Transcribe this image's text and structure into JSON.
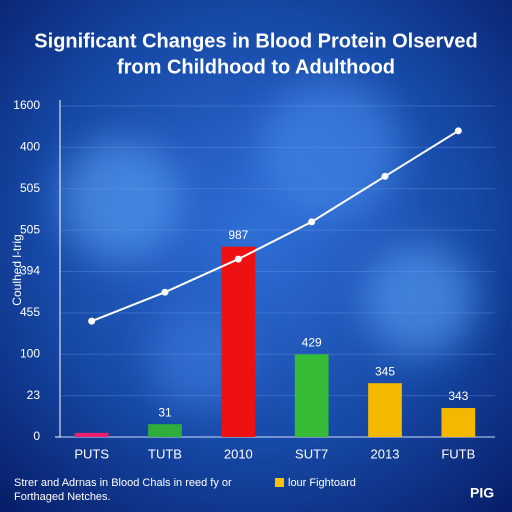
{
  "chart_data": {
    "type": "bar",
    "title": [
      "Significant Changes in Blood Protein Olserved",
      "from Childhood to Adulthood"
    ],
    "y_label": "Coulhed l-trig",
    "categories": [
      "PUTS",
      "TUTB",
      "2010",
      "SUT7",
      "2013",
      "FUTB"
    ],
    "values": [
      0.1,
      0.31,
      4.6,
      2.0,
      1.3,
      0.7
    ],
    "colors": [
      "#e8206e",
      "#2fae3c",
      "#ee1111",
      "#35bb35",
      "#f5b800",
      "#f5b800"
    ],
    "annotations": [
      null,
      "31",
      "987",
      "429",
      "345",
      "343"
    ],
    "line": {
      "color": "#ffffff",
      "values": [
        2.8,
        3.5,
        4.3,
        5.2,
        6.3,
        7.4
      ]
    },
    "ylim": [
      0,
      8
    ],
    "yticks": [
      {
        "value": 0,
        "label": "0"
      },
      {
        "value": 1,
        "label": "23"
      },
      {
        "value": 2,
        "label": "100"
      },
      {
        "value": 3,
        "label": "455"
      },
      {
        "value": 4,
        "label": "394"
      },
      {
        "value": 5,
        "label": "505"
      },
      {
        "value": 6,
        "label": "505"
      },
      {
        "value": 7,
        "label": "400"
      },
      {
        "value": 8,
        "label": "1600"
      }
    ],
    "grid": true,
    "footer": [
      "Strer and Adrnas in Blood Chals in reed fy or",
      "lour Fightoard",
      "Forthaged Netches."
    ],
    "logo": "PIG"
  }
}
